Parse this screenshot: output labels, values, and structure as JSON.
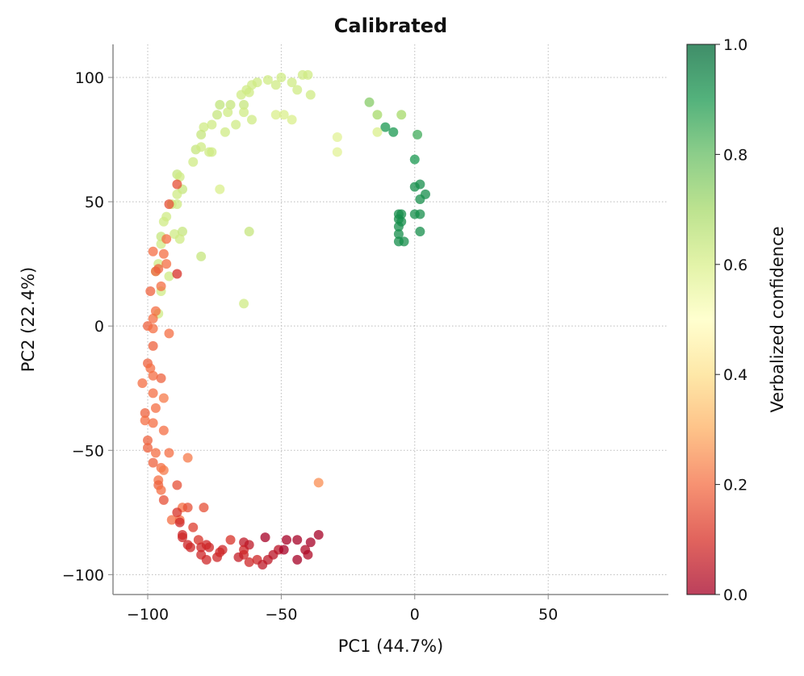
{
  "chart_data": {
    "type": "scatter",
    "title": "Calibrated",
    "xlabel": "PC1 (44.7%)",
    "ylabel": "PC2 (22.4%)",
    "xlim": [
      -113,
      95
    ],
    "ylim": [
      -108,
      113.3
    ],
    "xticks": [
      {
        "value": -100,
        "label": "−100"
      },
      {
        "value": -50,
        "label": "−50"
      },
      {
        "value": 0,
        "label": "0"
      },
      {
        "value": 50,
        "label": "50"
      }
    ],
    "yticks": [
      {
        "value": -100,
        "label": "−100"
      },
      {
        "value": -50,
        "label": "−50"
      },
      {
        "value": 0,
        "label": "0"
      },
      {
        "value": 50,
        "label": "50"
      },
      {
        "value": 100,
        "label": "100"
      }
    ],
    "grid": true,
    "colormap": [
      "#a50026",
      "#d73027",
      "#f46d43",
      "#fdae61",
      "#fee08b",
      "#ffffbf",
      "#d9ef8b",
      "#a6d96a",
      "#66bd63",
      "#1a9850",
      "#006837"
    ],
    "colorbar": {
      "label": "Verbalized confidence",
      "lim": [
        0,
        1
      ],
      "ticks": [
        {
          "value": 0,
          "label": "0.0"
        },
        {
          "value": 0.2,
          "label": "0.2"
        },
        {
          "value": 0.4,
          "label": "0.4"
        },
        {
          "value": 0.6,
          "label": "0.6"
        },
        {
          "value": 0.8,
          "label": "0.8"
        },
        {
          "value": 1,
          "label": "1.0"
        }
      ]
    },
    "x": [
      -17,
      -14,
      -11,
      -8,
      -5,
      1,
      0,
      0,
      2,
      4,
      2,
      -6,
      -5,
      -6,
      -5,
      -6,
      0,
      2,
      -6,
      -4,
      -6,
      2,
      -14,
      -50,
      -42,
      -40,
      -46,
      -39,
      -44,
      -52,
      -55,
      -59,
      -61,
      -63,
      -62,
      -65,
      -64,
      -64,
      -61,
      -69,
      -73,
      -70,
      -67,
      -74,
      -76,
      -71,
      -79,
      -80,
      -77,
      -76,
      -82,
      -80,
      -83,
      -52,
      -49,
      -46,
      -29,
      -29,
      -89,
      -88,
      -87,
      -89,
      -91,
      -89,
      -93,
      -94,
      -95,
      -90,
      -87,
      -88,
      -95,
      -92,
      -96,
      -96,
      -95,
      -80,
      -73,
      -62,
      -64,
      -97,
      -92,
      -89,
      -93,
      -98,
      -94,
      -93,
      -96,
      -97,
      -89,
      -95,
      -99,
      -97,
      -98,
      -100,
      -98,
      -92,
      -98,
      -100,
      -99,
      -98,
      -95,
      -102,
      -98,
      -94,
      -97,
      -101,
      -101,
      -98,
      -94,
      -100,
      -100,
      -97,
      -92,
      -98,
      -95,
      -94,
      -96,
      -96,
      -89,
      -95,
      -94,
      -85,
      -36,
      -79,
      -87,
      -85,
      -91,
      -88,
      -89,
      -88,
      -83,
      -87,
      -87,
      -81,
      -85,
      -84,
      -78,
      -80,
      -77,
      -80,
      -78,
      -74,
      -73,
      -72,
      -69,
      -64,
      -64,
      -64,
      -62,
      -62,
      -59,
      -57,
      -55,
      -53,
      -51,
      -56,
      -48,
      -49,
      -44,
      -41,
      -40,
      -44,
      -39,
      -36,
      -66
    ],
    "y": [
      90,
      85,
      80,
      78,
      85,
      77,
      67,
      56,
      57,
      53,
      51,
      45,
      45,
      43,
      42,
      40,
      45,
      45,
      37,
      34,
      34,
      38,
      78,
      100,
      101,
      101,
      98,
      93,
      95,
      97,
      99,
      98,
      97,
      95,
      94,
      93,
      89,
      86,
      83,
      89,
      89,
      86,
      81,
      85,
      81,
      78,
      80,
      77,
      70,
      70,
      71,
      72,
      66,
      85,
      85,
      83,
      76,
      70,
      61,
      60,
      55,
      53,
      49,
      49,
      44,
      42,
      36,
      37,
      38,
      35,
      33,
      20,
      25,
      5,
      14,
      28,
      55,
      38,
      9,
      22,
      49,
      57,
      35,
      30,
      29,
      25,
      23,
      22,
      21,
      16,
      14,
      6,
      3,
      0,
      -1,
      -3,
      -8,
      -15,
      -17,
      -20,
      -21,
      -23,
      -27,
      -29,
      -33,
      -35,
      -38,
      -39,
      -42,
      -46,
      -49,
      -51,
      -51,
      -55,
      -57,
      -58,
      -62,
      -64,
      -64,
      -66,
      -70,
      -53,
      -63,
      -73,
      -73,
      -73,
      -78,
      -78,
      -75,
      -79,
      -81,
      -84,
      -85,
      -86,
      -88,
      -89,
      -88,
      -89,
      -89,
      -92,
      -94,
      -93,
      -91,
      -90,
      -86,
      -87,
      -90,
      -92,
      -88,
      -95,
      -94,
      -96,
      -94,
      -92,
      -90,
      -85,
      -86,
      -90,
      -86,
      -90,
      -92,
      -94,
      -87,
      -84,
      -93
    ],
    "c": [
      0.75,
      0.7,
      0.9,
      0.9,
      0.7,
      0.85,
      0.9,
      0.92,
      0.92,
      0.92,
      0.92,
      0.92,
      0.92,
      0.92,
      0.92,
      0.92,
      0.92,
      0.92,
      0.92,
      0.92,
      0.92,
      0.92,
      0.6,
      0.62,
      0.62,
      0.62,
      0.62,
      0.62,
      0.62,
      0.62,
      0.62,
      0.62,
      0.62,
      0.62,
      0.62,
      0.62,
      0.64,
      0.62,
      0.62,
      0.64,
      0.65,
      0.62,
      0.62,
      0.64,
      0.62,
      0.62,
      0.62,
      0.64,
      0.62,
      0.62,
      0.64,
      0.62,
      0.62,
      0.6,
      0.6,
      0.6,
      0.58,
      0.58,
      0.64,
      0.62,
      0.64,
      0.62,
      0.62,
      0.62,
      0.62,
      0.62,
      0.64,
      0.62,
      0.64,
      0.62,
      0.62,
      0.62,
      0.62,
      0.62,
      0.62,
      0.64,
      0.6,
      0.64,
      0.62,
      0.62,
      0.15,
      0.15,
      0.2,
      0.2,
      0.2,
      0.2,
      0.18,
      0.18,
      0.1,
      0.2,
      0.18,
      0.2,
      0.2,
      0.18,
      0.2,
      0.2,
      0.18,
      0.18,
      0.2,
      0.2,
      0.18,
      0.2,
      0.2,
      0.22,
      0.2,
      0.18,
      0.2,
      0.2,
      0.2,
      0.18,
      0.18,
      0.2,
      0.2,
      0.18,
      0.2,
      0.22,
      0.2,
      0.18,
      0.15,
      0.2,
      0.15,
      0.22,
      0.25,
      0.15,
      0.2,
      0.15,
      0.2,
      0.2,
      0.1,
      0.08,
      0.12,
      0.08,
      0.08,
      0.1,
      0.08,
      0.08,
      0.08,
      0.08,
      0.08,
      0.08,
      0.08,
      0.08,
      0.08,
      0.08,
      0.1,
      0.05,
      0.08,
      0.08,
      0.05,
      0.08,
      0.08,
      0.05,
      0.05,
      0.04,
      0.04,
      0.0,
      0.0,
      0.0,
      0.0,
      0.02,
      0.02,
      0.0,
      0.0,
      0.0,
      0.06
    ]
  }
}
